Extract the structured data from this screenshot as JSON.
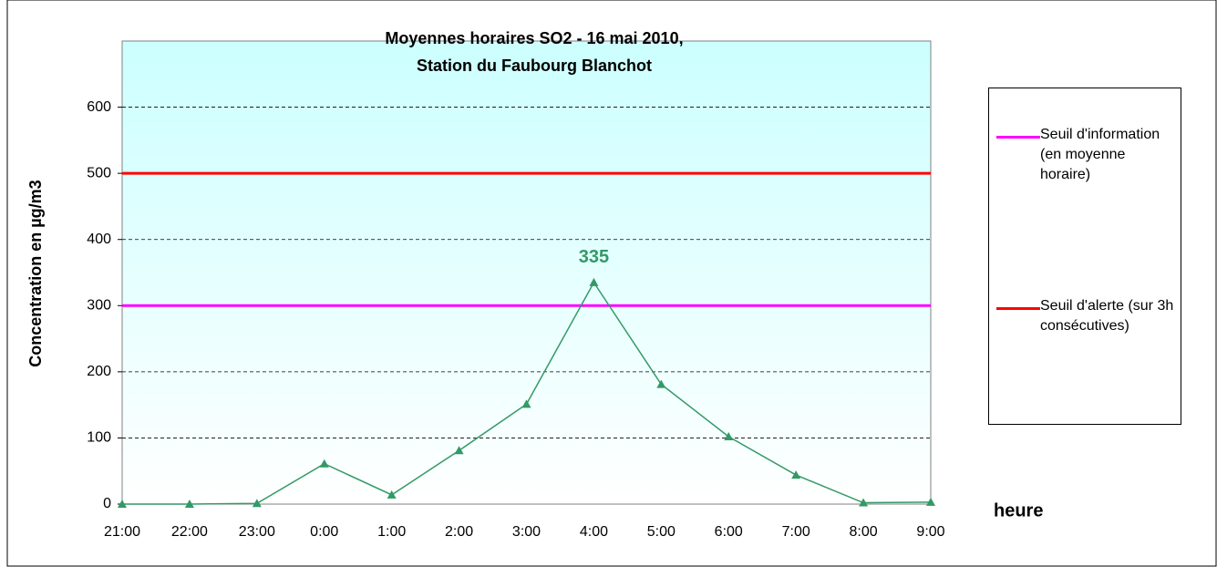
{
  "chart_data": {
    "type": "line",
    "title": [
      "Moyennes horaires SO2 - 16 mai 2010,",
      "Station du Faubourg Blanchot"
    ],
    "y_label": "Concentration en µg/m3",
    "x_label": "heure",
    "categories": [
      "21:00",
      "22:00",
      "23:00",
      "0:00",
      "1:00",
      "2:00",
      "3:00",
      "4:00",
      "5:00",
      "6:00",
      "7:00",
      "8:00",
      "9:00"
    ],
    "series": [
      {
        "color": "#339966",
        "values": [
          0,
          0,
          1,
          61,
          14,
          81,
          151,
          335,
          181,
          102,
          44,
          2,
          3
        ],
        "labelled_point": 7
      },
      {
        "name": "Seuil d'information (en moyenne horaire)",
        "color": "#ff00ff",
        "values": [
          300,
          300,
          300,
          300,
          300,
          300,
          300,
          300,
          300,
          300,
          300,
          300,
          300
        ]
      },
      {
        "name": "Seuil d'alerte (sur 3h consécutives)",
        "color": "#ff0000",
        "values": [
          500,
          500,
          500,
          500,
          500,
          500,
          500,
          500,
          500,
          500,
          500,
          500,
          500
        ]
      }
    ],
    "ylim": [
      0,
      700
    ],
    "yticks": [
      0,
      100,
      200,
      300,
      400,
      500,
      600
    ],
    "grid": true
  }
}
